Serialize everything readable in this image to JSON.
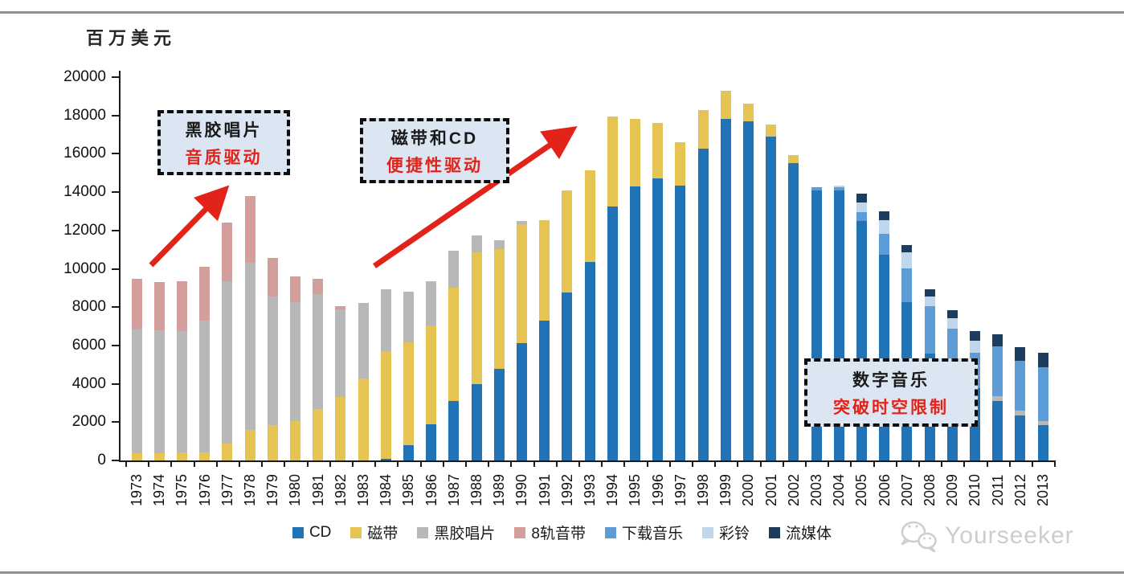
{
  "header": {
    "unit_label": "百万美元"
  },
  "annotations": {
    "vinyl": {
      "line1": "黑胶唱片",
      "line2": "音质驱动"
    },
    "tape_cd": {
      "line1": "磁带和CD",
      "line2": "便捷性驱动"
    },
    "digital": {
      "line1": "数字音乐",
      "line2": "突破时空限制"
    }
  },
  "watermark": {
    "icon": "wechat-icon",
    "text": "Yourseeker"
  },
  "chart_data": {
    "type": "bar",
    "stacked": true,
    "title": "",
    "ylabel": "百万美元",
    "xlabel": "",
    "ylim": [
      0,
      20000
    ],
    "ytick_step": 2000,
    "grid": false,
    "legend_position": "bottom",
    "accent_red": "#e2231a",
    "categories": [
      1973,
      1974,
      1975,
      1976,
      1977,
      1978,
      1979,
      1980,
      1981,
      1982,
      1983,
      1984,
      1985,
      1986,
      1987,
      1988,
      1989,
      1990,
      1991,
      1992,
      1993,
      1994,
      1995,
      1996,
      1997,
      1998,
      1999,
      2000,
      2001,
      2002,
      2003,
      2004,
      2005,
      2006,
      2007,
      2008,
      2009,
      2010,
      2011,
      2012,
      2013
    ],
    "series": [
      {
        "name": "CD",
        "color": "#2173b5",
        "values": [
          0,
          0,
          0,
          0,
          0,
          0,
          0,
          0,
          0,
          0,
          0,
          100,
          780,
          1870,
          3090,
          3990,
          4790,
          6140,
          7300,
          8770,
          10370,
          13270,
          14280,
          14700,
          14350,
          16250,
          17800,
          17700,
          16900,
          15510,
          14100,
          14070,
          12500,
          10750,
          8240,
          5590,
          4500,
          3780,
          3110,
          2340,
          1860
        ]
      },
      {
        "name": "磁带",
        "color": "#e5c454",
        "values": [
          390,
          390,
          400,
          420,
          880,
          1580,
          1860,
          2070,
          2700,
          3320,
          4260,
          5620,
          5380,
          5190,
          5930,
          6870,
          6240,
          6200,
          5230,
          5300,
          4770,
          4680,
          3560,
          2890,
          2260,
          2050,
          1500,
          900,
          630,
          420,
          0,
          0,
          0,
          0,
          0,
          0,
          0,
          0,
          0,
          0,
          0
        ]
      },
      {
        "name": "黑胶唱片",
        "color": "#b8b8b8",
        "values": [
          6460,
          6410,
          6360,
          6880,
          8470,
          8720,
          6700,
          6180,
          5970,
          4550,
          3950,
          3190,
          2630,
          2310,
          1910,
          860,
          460,
          160,
          0,
          0,
          0,
          0,
          0,
          0,
          0,
          0,
          0,
          0,
          0,
          0,
          0,
          0,
          0,
          0,
          0,
          0,
          0,
          0,
          240,
          280,
          210
        ]
      },
      {
        "name": "8轨音带",
        "color": "#d39e9b",
        "values": [
          2640,
          2520,
          2600,
          2790,
          3080,
          3490,
          2020,
          1350,
          820,
          200,
          0,
          0,
          0,
          0,
          0,
          0,
          0,
          0,
          0,
          0,
          0,
          0,
          0,
          0,
          0,
          0,
          0,
          0,
          0,
          0,
          0,
          0,
          0,
          0,
          0,
          0,
          0,
          0,
          0,
          0,
          0
        ]
      },
      {
        "name": "下载音乐",
        "color": "#5d9cd6",
        "values": [
          0,
          0,
          0,
          0,
          0,
          0,
          0,
          0,
          0,
          0,
          0,
          0,
          0,
          0,
          0,
          0,
          0,
          0,
          0,
          0,
          0,
          0,
          0,
          0,
          0,
          0,
          0,
          0,
          0,
          0,
          150,
          200,
          450,
          1080,
          1780,
          2450,
          2360,
          1850,
          2620,
          2580,
          2780
        ]
      },
      {
        "name": "彩铃",
        "color": "#bfd6ec",
        "values": [
          0,
          0,
          0,
          0,
          0,
          0,
          0,
          0,
          0,
          0,
          0,
          0,
          0,
          0,
          0,
          0,
          0,
          0,
          0,
          0,
          0,
          0,
          0,
          0,
          0,
          0,
          0,
          0,
          0,
          0,
          0,
          80,
          530,
          700,
          840,
          520,
          550,
          620,
          0,
          0,
          0
        ]
      },
      {
        "name": "流媒体",
        "color": "#1c3d5e",
        "values": [
          0,
          0,
          0,
          0,
          0,
          0,
          0,
          0,
          0,
          0,
          0,
          0,
          0,
          0,
          0,
          0,
          0,
          0,
          0,
          0,
          0,
          0,
          0,
          0,
          0,
          0,
          0,
          0,
          0,
          0,
          0,
          0,
          420,
          450,
          390,
          370,
          450,
          490,
          630,
          700,
          780
        ]
      }
    ]
  }
}
